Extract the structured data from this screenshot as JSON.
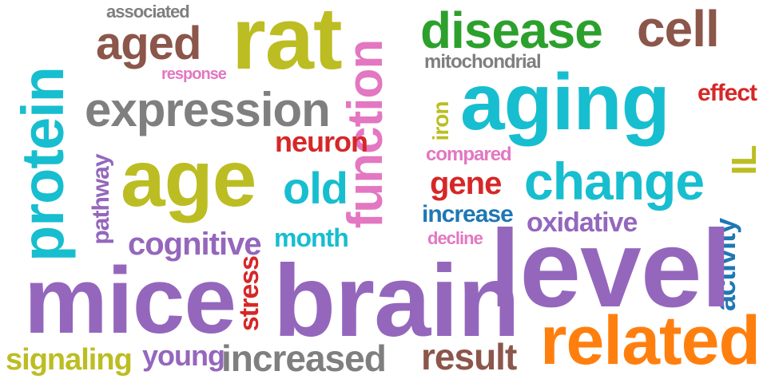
{
  "palette": {
    "purple": "#9467bd",
    "cyan": "#17becf",
    "olive": "#bcbd22",
    "brown": "#8c564b",
    "gray": "#7f7f7f",
    "pink": "#e377c2",
    "green": "#2ca02c",
    "red": "#d62728",
    "orange": "#ff7f0e",
    "blue": "#1f77b4"
  },
  "words": [
    {
      "text": "associated",
      "color": "gray"
    },
    {
      "text": "aged",
      "color": "brown"
    },
    {
      "text": "rat",
      "color": "olive"
    },
    {
      "text": "function",
      "color": "pink"
    },
    {
      "text": "disease",
      "color": "green"
    },
    {
      "text": "cell",
      "color": "brown"
    },
    {
      "text": "protein",
      "color": "cyan"
    },
    {
      "text": "mitochondrial",
      "color": "gray"
    },
    {
      "text": "response",
      "color": "pink"
    },
    {
      "text": "aging",
      "color": "cyan"
    },
    {
      "text": "effect",
      "color": "red"
    },
    {
      "text": "expression",
      "color": "gray"
    },
    {
      "text": "iron",
      "color": "olive"
    },
    {
      "text": "neuron",
      "color": "red"
    },
    {
      "text": "compared",
      "color": "pink"
    },
    {
      "text": "IL",
      "color": "olive"
    },
    {
      "text": "pathway",
      "color": "purple"
    },
    {
      "text": "age",
      "color": "olive"
    },
    {
      "text": "old",
      "color": "cyan"
    },
    {
      "text": "gene",
      "color": "red"
    },
    {
      "text": "change",
      "color": "cyan"
    },
    {
      "text": "increase",
      "color": "blue"
    },
    {
      "text": "oxidative",
      "color": "purple"
    },
    {
      "text": "cognitive",
      "color": "purple"
    },
    {
      "text": "month",
      "color": "cyan"
    },
    {
      "text": "decline",
      "color": "pink"
    },
    {
      "text": "activity",
      "color": "blue"
    },
    {
      "text": "level",
      "color": "purple"
    },
    {
      "text": "mice",
      "color": "purple"
    },
    {
      "text": "stress",
      "color": "red"
    },
    {
      "text": "brain",
      "color": "purple"
    },
    {
      "text": "related",
      "color": "orange"
    },
    {
      "text": "signaling",
      "color": "olive"
    },
    {
      "text": "young",
      "color": "purple"
    },
    {
      "text": "increased",
      "color": "gray"
    },
    {
      "text": "result",
      "color": "brown"
    }
  ]
}
